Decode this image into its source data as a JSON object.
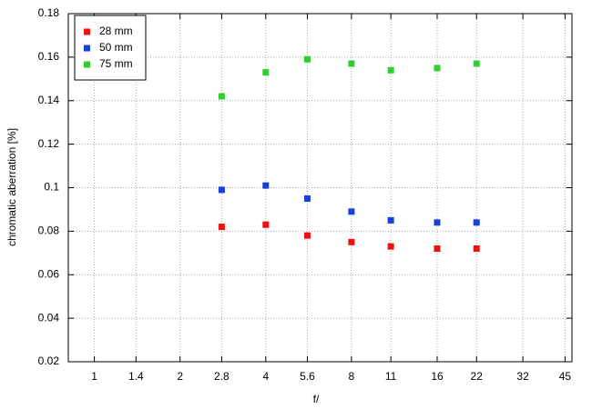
{
  "chart_data": {
    "type": "scatter",
    "x_label": "f/",
    "y_label": "chromatic aberration [%]",
    "x": [
      2.8,
      4,
      5.6,
      8,
      11,
      16,
      22
    ],
    "xscale": "log",
    "xlim": [
      0.81,
      47.6
    ],
    "xticks": [
      1,
      1.4,
      2,
      2.8,
      4,
      5.6,
      8,
      11,
      16,
      22,
      32,
      45
    ],
    "ylim": [
      0.02,
      0.18
    ],
    "yticks": [
      0.02,
      0.04,
      0.06,
      0.08,
      0.1,
      0.12,
      0.14,
      0.16,
      0.18
    ],
    "grid": true,
    "legend": "top-left",
    "series": [
      {
        "name": "28 mm",
        "color": "#ee1111",
        "values": [
          0.082,
          0.083,
          0.078,
          0.075,
          0.073,
          0.072,
          0.072
        ]
      },
      {
        "name": "50 mm",
        "color": "#1a3fd6",
        "values": [
          0.099,
          0.101,
          0.095,
          0.089,
          0.085,
          0.084,
          0.084
        ]
      },
      {
        "name": "75 mm",
        "color": "#33cc33",
        "values": [
          0.142,
          0.153,
          0.159,
          0.157,
          0.154,
          0.155,
          0.157
        ]
      }
    ]
  }
}
